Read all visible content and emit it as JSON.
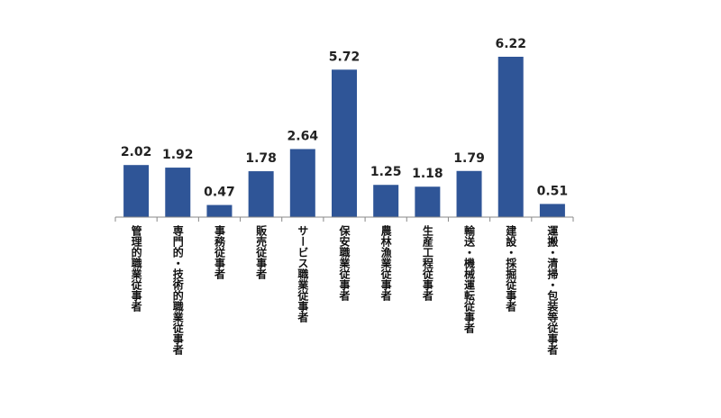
{
  "chart_data": {
    "type": "bar",
    "categories": [
      "管理的職業従事者",
      "専門的・技術的職業従事者",
      "事務従事者",
      "販売従事者",
      "サービス職業従事者",
      "保安職業従事者",
      "農林漁業従事者",
      "生産工程従事者",
      "輸送・機械運転従事者",
      "建設・採掘従事者",
      "運搬・清掃・包装等従事者"
    ],
    "values": [
      2.02,
      1.92,
      0.47,
      1.78,
      2.64,
      5.72,
      1.25,
      1.18,
      1.79,
      6.22,
      0.51
    ],
    "color": "#2f5597"
  }
}
